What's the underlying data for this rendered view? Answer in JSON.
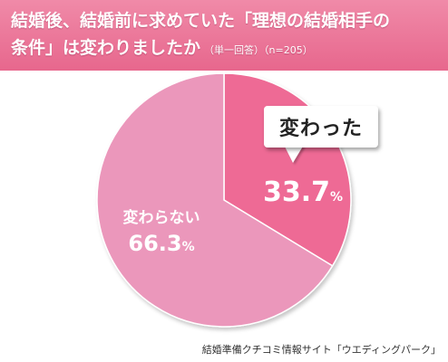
{
  "header": {
    "title_line1": "結婚後、結婚前に求めていた「理想の結婚相手の",
    "title_line2": "条件」は変わりましたか",
    "note": "（単一回答）（n=205）"
  },
  "callout_text": "変わった",
  "colors": {
    "banner": "#e7678d",
    "changed": "#ee6a95",
    "unchanged": "#eb97bb"
  },
  "chart_data": {
    "type": "pie",
    "title": "結婚後、結婚前に求めていた「理想の結婚相手の条件」は変わりましたか",
    "categories": [
      "変わった",
      "変わらない"
    ],
    "values": [
      33.7,
      66.3
    ],
    "unit": "%",
    "labels": [
      "33.7%",
      "66.3%"
    ]
  },
  "source": "結婚準備クチコミ情報サイト「ウエディングパーク」"
}
